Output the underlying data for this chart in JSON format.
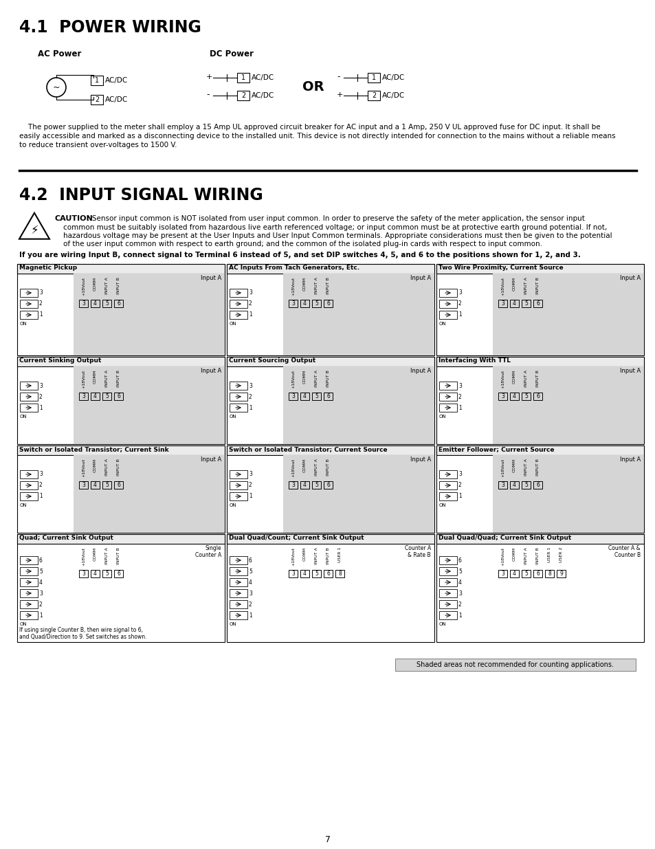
{
  "bg_color": "#ffffff",
  "title1": "4.1  POWER WIRING",
  "title2": "4.2  INPUT SIGNAL WIRING",
  "ac_power_label": "AC Power",
  "dc_power_label": "DC Power",
  "or_text": "OR",
  "para1_lines": [
    "    The power supplied to the meter shall employ a 15 Amp UL approved circuit breaker for AC input and a 1 Amp, 250 V UL approved fuse for DC input. It shall be",
    "easily accessible and marked as a disconnecting device to the installed unit. This device is not directly intended for connection to the mains without a reliable means",
    "to reduce transient over-voltages to 1500 V."
  ],
  "caution_title": "CAUTION",
  "caution_lines": [
    ": Sensor input common is NOT isolated from user input common. In order to preserve the safety of the meter application, the sensor input",
    "common must be suitably isolated from hazardous live earth referenced voltage; or input common must be at protective earth ground potential. If not,",
    "hazardous voltage may be present at the User Inputs and User Input Common terminals. Appropriate considerations must then be given to the potential",
    "of the user input common with respect to earth ground; and the common of the isolated plug-in cards with respect to input common."
  ],
  "bold_note": "If you are wiring Input B, connect signal to Terminal 6 instead of 5, and set DIP switches 4, 5, and 6 to the positions shown for 1, 2, and 3.",
  "page_num": "7",
  "shaded_note": "Shaded areas not recommended for counting applications.",
  "row0_titles": [
    "Magnetic Pickup",
    "AC Inputs From Tach Generators, Etc.",
    "Two Wire Proximity, Current Source"
  ],
  "row1_titles": [
    "Current Sinking Output",
    "Current Sourcing Output",
    "Interfacing With TTL"
  ],
  "row2_titles": [
    "Switch or Isolated Transistor; Current Sink",
    "Switch or Isolated Transistor; Current Source",
    "Emitter Follower; Current Source"
  ],
  "row3_titles": [
    "Quad; Current Sink Output",
    "Dual Quad/Count; Current Sink Output",
    "Dual Quad/Quad; Current Sink Output"
  ],
  "row3_subtitles": [
    "Single\nCounter A",
    "Counter A\n& Rate B",
    "Counter A &\nCounter B"
  ],
  "counter_note": "If using single Counter B, then wire signal to 6,\nand Quad/Direction to 9. Set switches as shown.",
  "term_labels": [
    "+18Vout",
    "COMM",
    "INPUT A",
    "INPUT B"
  ],
  "term_nums_basic": [
    "3",
    "4",
    "5",
    "6"
  ],
  "term_nums_dual": [
    "3",
    "4",
    "5",
    "6",
    "8"
  ],
  "term_nums_dualquad": [
    "3",
    "4",
    "5",
    "6",
    "8",
    "9"
  ],
  "dip_labels_3": [
    "3",
    "2",
    "1"
  ],
  "dip_labels_6": [
    "6",
    "5",
    "4",
    "3",
    "2",
    "1"
  ]
}
